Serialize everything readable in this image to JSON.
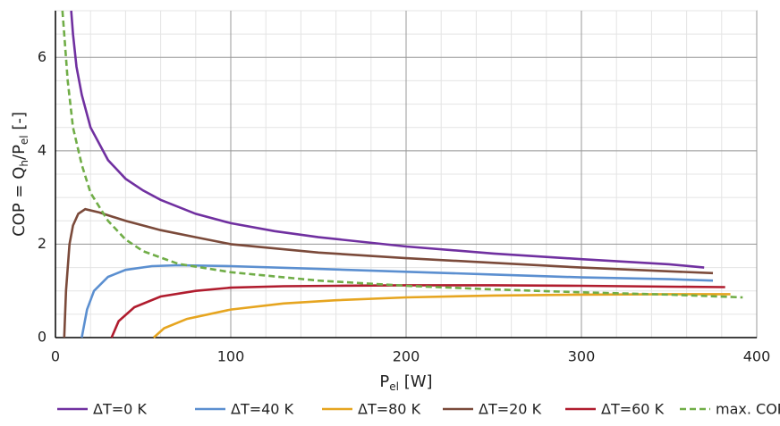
{
  "chart_data": {
    "type": "line",
    "x_label": [
      "P",
      "el",
      " [W]"
    ],
    "y_label": [
      "COP = Q",
      "h",
      "/P",
      "el",
      " [-]"
    ],
    "xlim": [
      0,
      400
    ],
    "xticks": [
      0,
      100,
      200,
      300,
      400
    ],
    "ylim": [
      0,
      7
    ],
    "yticks": [
      0,
      2,
      4,
      6
    ],
    "grid": true,
    "minor_grid": true,
    "legend": "bottom",
    "series": [
      {
        "name": "ΔT=0 K",
        "color": "#7030a0",
        "dashed": false,
        "x": [
          9,
          10,
          12,
          15,
          20,
          30,
          40,
          50,
          60,
          80,
          100,
          125,
          150,
          200,
          250,
          300,
          350,
          370
        ],
        "values": [
          7,
          6.5,
          5.8,
          5.2,
          4.5,
          3.8,
          3.4,
          3.15,
          2.95,
          2.65,
          2.45,
          2.28,
          2.15,
          1.95,
          1.8,
          1.68,
          1.57,
          1.5
        ]
      },
      {
        "name": "ΔT=40 K",
        "color": "#5b8fd0",
        "dashed": false,
        "x": [
          15,
          18,
          22,
          30,
          40,
          55,
          70,
          100,
          150,
          200,
          250,
          300,
          350,
          375
        ],
        "values": [
          0,
          0.6,
          1.0,
          1.3,
          1.45,
          1.53,
          1.55,
          1.53,
          1.47,
          1.41,
          1.35,
          1.29,
          1.25,
          1.22
        ]
      },
      {
        "name": "ΔT=80 K",
        "color": "#e6a520",
        "dashed": false,
        "x": [
          56,
          62,
          75,
          100,
          130,
          160,
          200,
          250,
          300,
          350,
          385
        ],
        "values": [
          0,
          0.2,
          0.4,
          0.6,
          0.73,
          0.8,
          0.86,
          0.9,
          0.92,
          0.93,
          0.93
        ]
      },
      {
        "name": "ΔT=20 K",
        "color": "#7b4a3a",
        "dashed": false,
        "x": [
          5,
          6,
          8,
          10,
          13,
          17,
          25,
          40,
          60,
          80,
          100,
          150,
          200,
          250,
          300,
          350,
          375
        ],
        "values": [
          0,
          1,
          2,
          2.4,
          2.65,
          2.75,
          2.68,
          2.5,
          2.3,
          2.15,
          2.0,
          1.82,
          1.7,
          1.6,
          1.5,
          1.42,
          1.38
        ]
      },
      {
        "name": "ΔT=60 K",
        "color": "#b01c2e",
        "dashed": false,
        "x": [
          32,
          36,
          45,
          60,
          80,
          100,
          130,
          160,
          200,
          250,
          300,
          350,
          382
        ],
        "values": [
          0,
          0.35,
          0.65,
          0.88,
          1.0,
          1.07,
          1.1,
          1.11,
          1.12,
          1.12,
          1.11,
          1.09,
          1.08
        ]
      },
      {
        "name": "max. COP",
        "color": "#70ad47",
        "dashed": true,
        "x": [
          4,
          5,
          7,
          10,
          15,
          20,
          30,
          40,
          50,
          70,
          100,
          150,
          200,
          250,
          300,
          350,
          392
        ],
        "values": [
          7,
          6.5,
          5.5,
          4.5,
          3.7,
          3.1,
          2.5,
          2.1,
          1.85,
          1.58,
          1.4,
          1.22,
          1.11,
          1.03,
          0.97,
          0.92,
          0.86
        ]
      }
    ]
  }
}
